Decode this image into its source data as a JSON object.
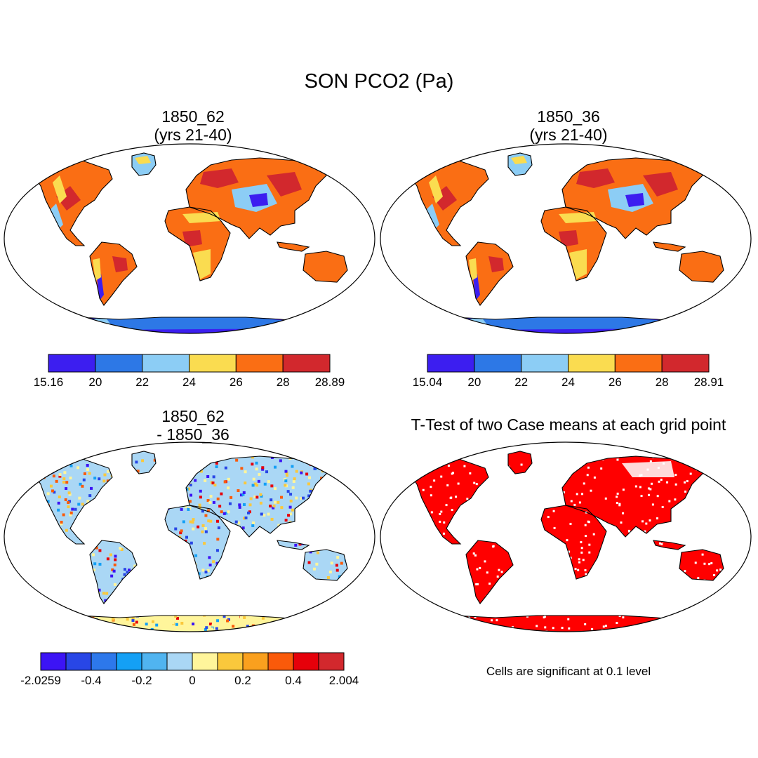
{
  "title": "SON PCO2 (Pa)",
  "panels": [
    {
      "title_line1": "1850_62",
      "title_line2": "(yrs 21-40)"
    },
    {
      "title_line1": "1850_36",
      "title_line2": "(yrs 21-40)"
    },
    {
      "title_line1": "1850_62",
      "title_line2": "- 1850_36"
    },
    {
      "title_line1": "T-Test of two Case means at each grid point",
      "title_line2": ""
    }
  ],
  "colorbars": [
    {
      "colors": [
        "#3c1ef0",
        "#2d78e6",
        "#8ccdf5",
        "#fadc50",
        "#fa6e14",
        "#d2282d"
      ],
      "labels": [
        "15.16",
        "20",
        "22",
        "24",
        "26",
        "28",
        "28.89"
      ]
    },
    {
      "colors": [
        "#3c1ef0",
        "#2d78e6",
        "#8ccdf5",
        "#fadc50",
        "#fa6e14",
        "#d2282d"
      ],
      "labels": [
        "15.04",
        "20",
        "22",
        "24",
        "26",
        "28",
        "28.91"
      ]
    },
    {
      "colors": [
        "#3c14f5",
        "#2846e6",
        "#2d78eb",
        "#14a0f5",
        "#50b4f0",
        "#aad7f5",
        "#fff59b",
        "#fac83c",
        "#faa01e",
        "#fa5a0a",
        "#e6000a",
        "#d2282d"
      ],
      "labels": [
        "-2.0259",
        "-0.4",
        "-0.2",
        "0",
        "0.2",
        "0.4",
        "2.004"
      ]
    }
  ],
  "significance_note": "Cells are significant at 0.1 level",
  "colors": {
    "significant": "#ff0000"
  }
}
